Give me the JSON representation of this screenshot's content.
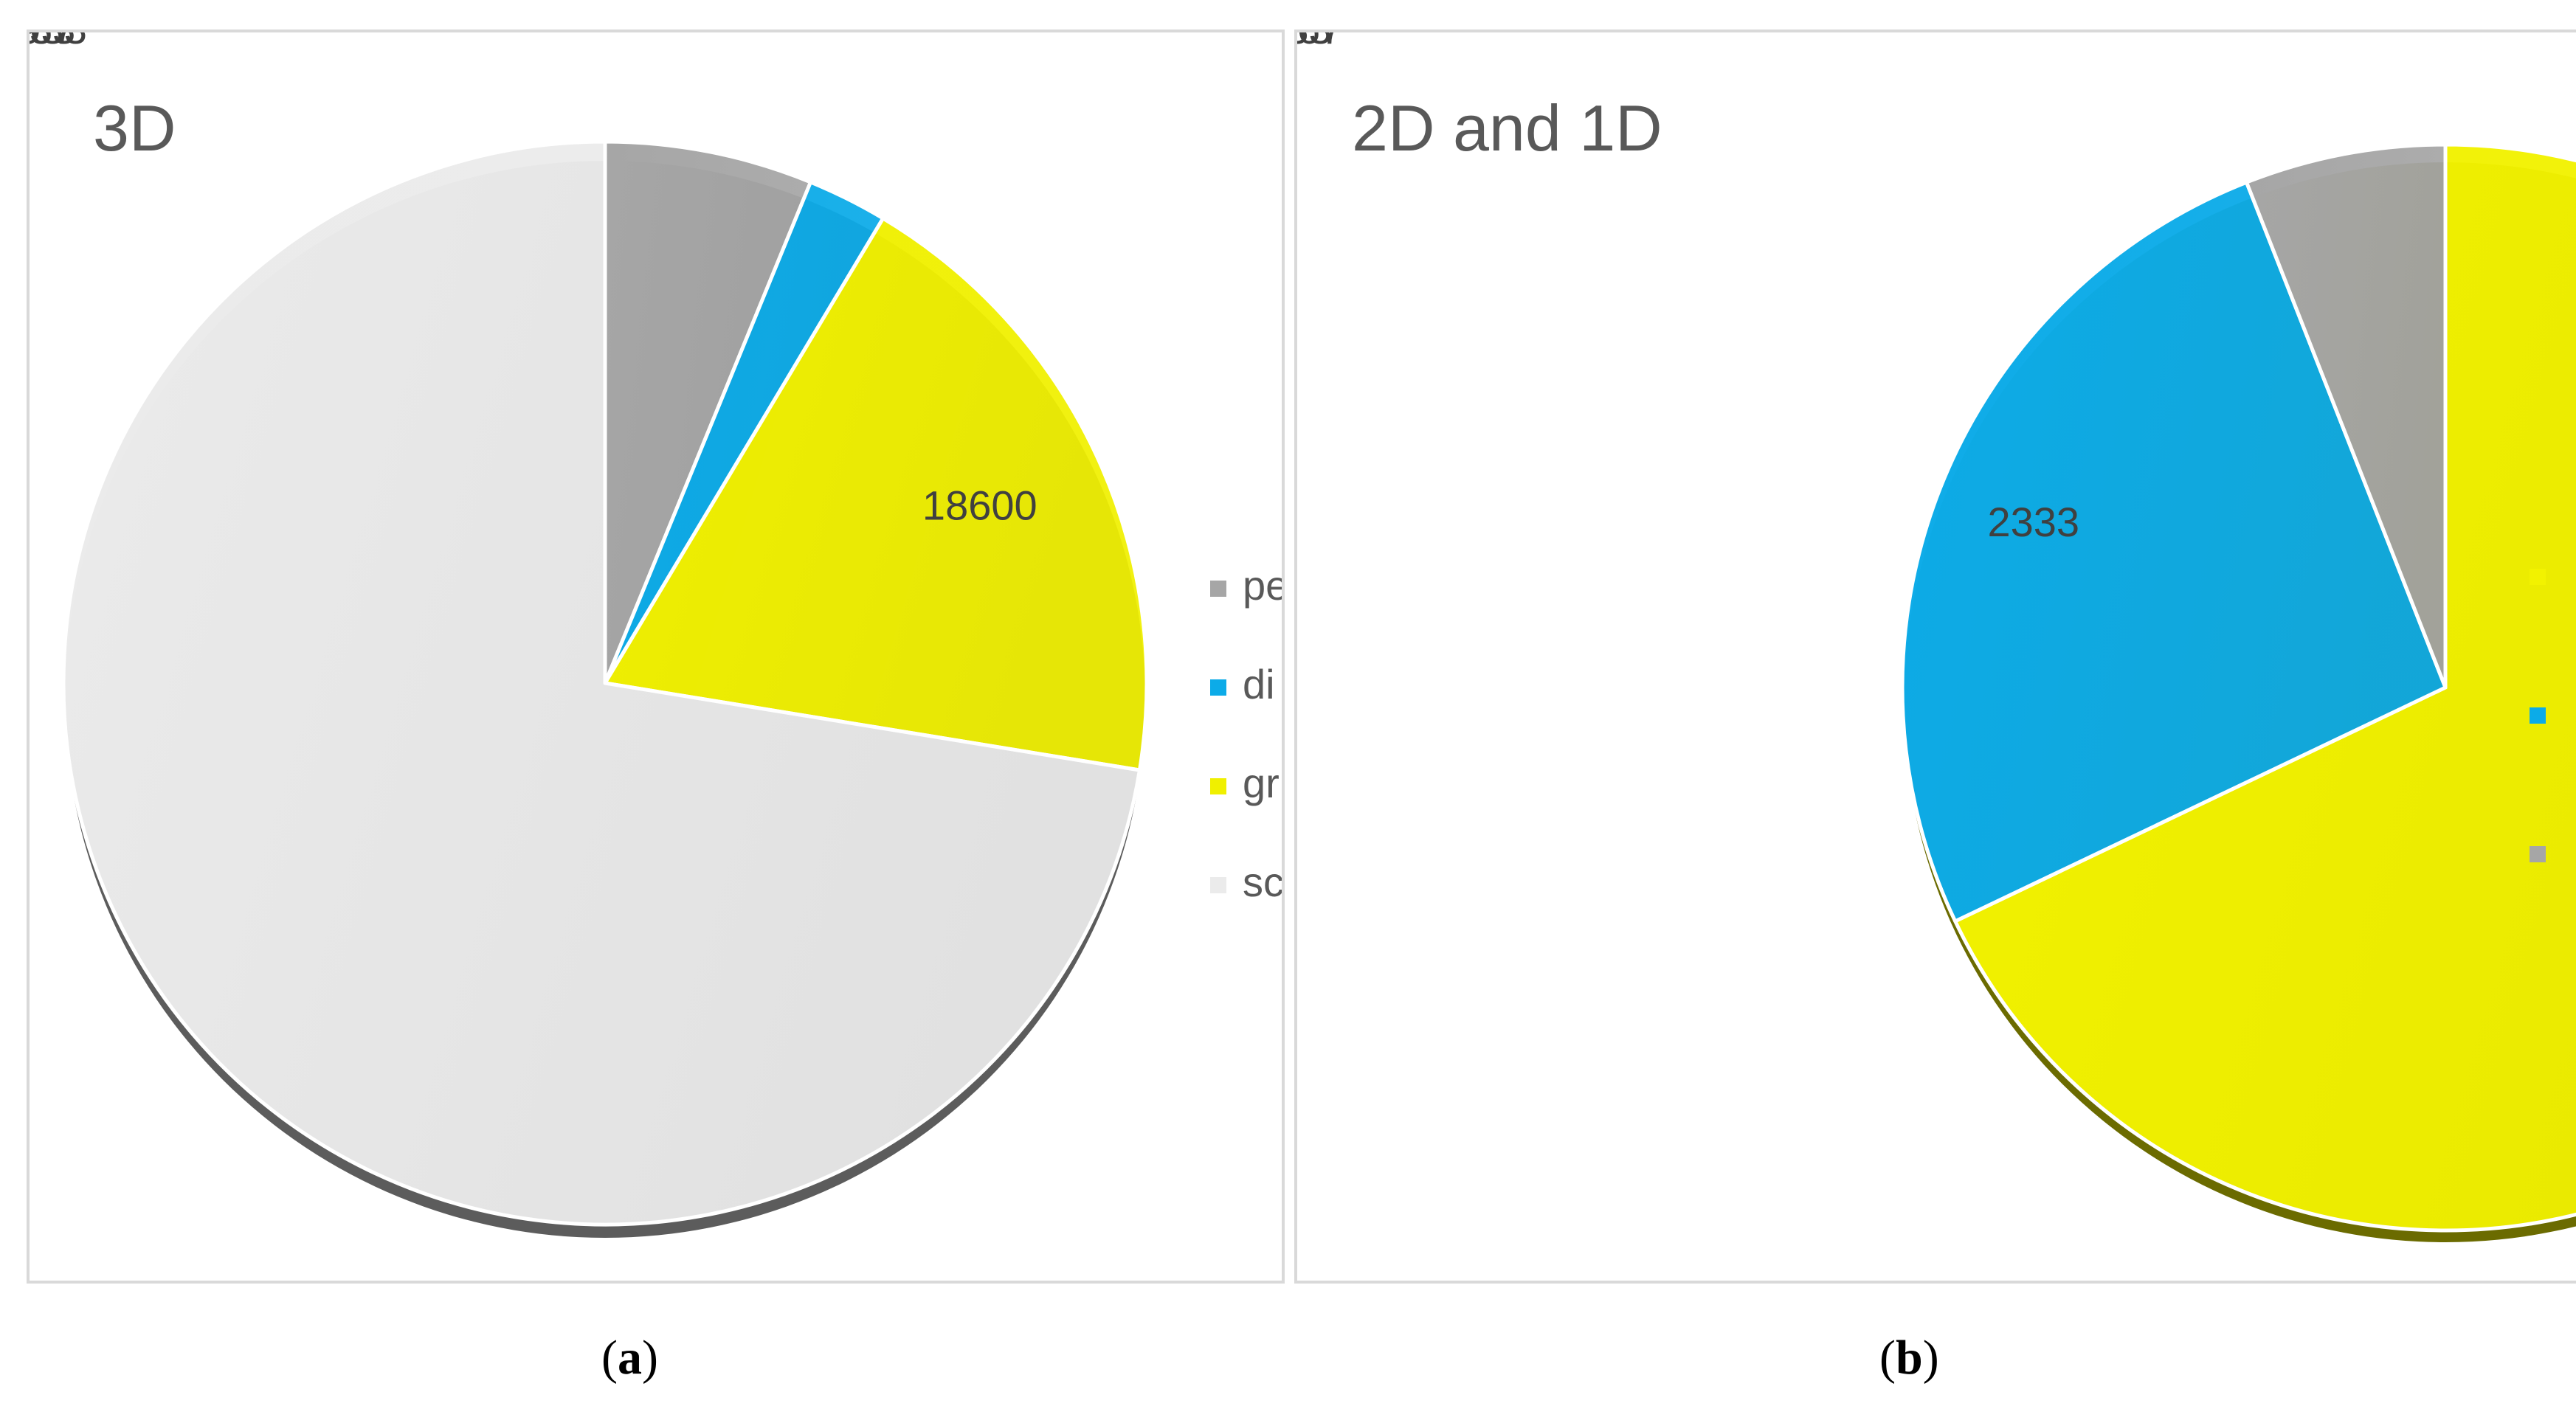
{
  "captions": {
    "a": "a",
    "b": "b"
  },
  "chart_data": [
    {
      "type": "pie",
      "title": "3D",
      "start_angle_deg": 0,
      "direction": "clockwise",
      "slices": [
        {
          "label": "pe",
          "value": 6067,
          "color": "#a6a6a6"
        },
        {
          "label": "di",
          "value": 2333,
          "color": "#0cabe8"
        },
        {
          "label": "gr",
          "value": 18600,
          "color": "#f0f000"
        },
        {
          "label": "sc",
          "value": 70933,
          "color": "#ebebeb"
        }
      ],
      "legend": {
        "position": "right",
        "entries": [
          "pe",
          "di",
          "gr",
          "sc"
        ]
      },
      "data_labels": true
    },
    {
      "type": "pie",
      "title": "2D and 1D",
      "start_angle_deg": 0,
      "direction": "clockwise",
      "slices": [
        {
          "label": "",
          "value": 6067,
          "color": "#f2f200"
        },
        {
          "label": "",
          "value": 2333,
          "color": "#0cabe8"
        },
        {
          "label": "",
          "value": 533,
          "color": "#a6a6a6"
        }
      ],
      "legend": {
        "position": "right",
        "entries": [
          "",
          "",
          ""
        ]
      },
      "data_labels": true
    }
  ]
}
